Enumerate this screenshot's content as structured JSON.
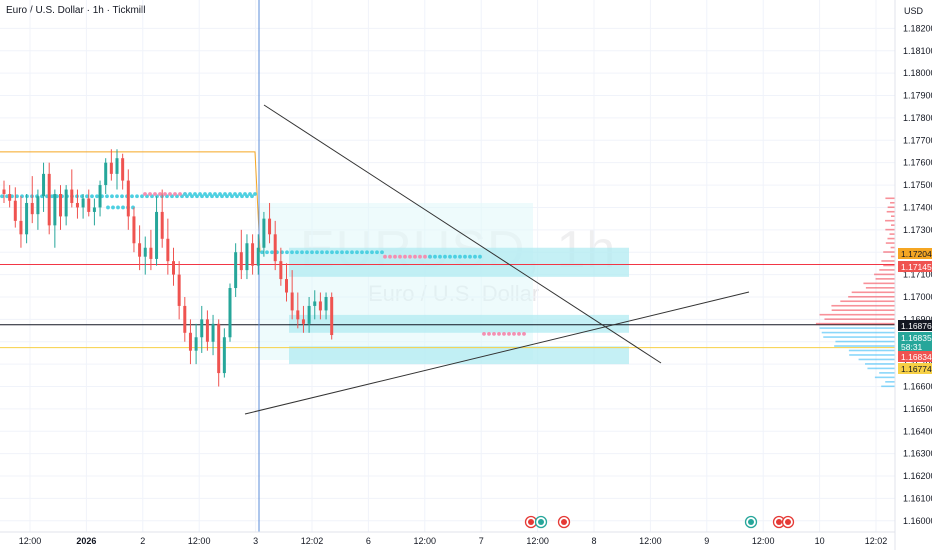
{
  "header": {
    "title": "Euro / U.S. Dollar · 1h · Tickmill",
    "currency": "USD"
  },
  "watermark": {
    "symbol": "EURUSD, 1h",
    "name": "Euro / U.S. Dollar"
  },
  "colors": {
    "up": "#26a69a",
    "down": "#ef5350",
    "resistance_line": "#f23645",
    "support_line": "#f7d046",
    "orange_line": "#f5a623",
    "zone": "#b2ebf2",
    "trend_line": "#333333",
    "cursor_line": "#5b8cd8"
  },
  "chart_data": {
    "type": "candlestick",
    "symbol": "EURUSD",
    "timeframe": "1h",
    "ylim": [
      1.1595,
      1.183
    ],
    "y_ticks": [
      "1.18200",
      "1.18100",
      "1.18000",
      "1.17900",
      "1.17800",
      "1.17700",
      "1.17600",
      "1.17500",
      "1.17400",
      "1.17300",
      "1.17200",
      "1.17100",
      "1.17000",
      "1.16900",
      "1.16800",
      "1.16700",
      "1.16600",
      "1.16500",
      "1.16400",
      "1.16300",
      "1.16200",
      "1.16100",
      "1.16000"
    ],
    "x_ticks": [
      "12:00",
      "2026",
      "2",
      "12:00",
      "3",
      "12:02",
      "6",
      "12:00",
      "7",
      "12:00",
      "8",
      "12:00",
      "9",
      "12:00",
      "10",
      "12:02"
    ],
    "x_tick_pos": [
      0,
      1,
      2,
      3,
      4,
      5,
      6,
      7,
      8,
      9,
      10,
      11,
      12,
      13,
      14,
      15
    ],
    "price_labels": [
      {
        "value": 1.17204,
        "text": "1.17204",
        "role": "orange"
      },
      {
        "value": 1.17145,
        "text": "1.17145",
        "role": "red"
      },
      {
        "value": 1.16876,
        "text": "1.16876",
        "role": "black"
      },
      {
        "value": 1.16835,
        "text": "1.16835",
        "sub": "58:31",
        "role": "teal"
      },
      {
        "value": 1.16834,
        "text": "1.16834",
        "role": "red"
      },
      {
        "value": 1.16774,
        "text": "1.16774",
        "role": "yellow"
      }
    ],
    "horizontal_levels": [
      {
        "value": 1.17145,
        "role": "resistance"
      },
      {
        "value": 1.16876,
        "role": "current"
      },
      {
        "value": 1.16774,
        "role": "support"
      }
    ],
    "candles": [
      {
        "o": 1.1748,
        "h": 1.1752,
        "l": 1.1742,
        "c": 1.1746
      },
      {
        "o": 1.1746,
        "h": 1.175,
        "l": 1.174,
        "c": 1.1743
      },
      {
        "o": 1.1743,
        "h": 1.1749,
        "l": 1.1731,
        "c": 1.1734
      },
      {
        "o": 1.1734,
        "h": 1.1745,
        "l": 1.1722,
        "c": 1.1728
      },
      {
        "o": 1.1728,
        "h": 1.1746,
        "l": 1.1724,
        "c": 1.1742
      },
      {
        "o": 1.1742,
        "h": 1.1754,
        "l": 1.1733,
        "c": 1.1737
      },
      {
        "o": 1.1737,
        "h": 1.1748,
        "l": 1.173,
        "c": 1.1745
      },
      {
        "o": 1.1745,
        "h": 1.176,
        "l": 1.1738,
        "c": 1.1755
      },
      {
        "o": 1.1755,
        "h": 1.176,
        "l": 1.1728,
        "c": 1.1732
      },
      {
        "o": 1.1732,
        "h": 1.1748,
        "l": 1.1722,
        "c": 1.1746
      },
      {
        "o": 1.1746,
        "h": 1.175,
        "l": 1.173,
        "c": 1.1736
      },
      {
        "o": 1.1736,
        "h": 1.175,
        "l": 1.1732,
        "c": 1.1748
      },
      {
        "o": 1.1748,
        "h": 1.1757,
        "l": 1.174,
        "c": 1.1742
      },
      {
        "o": 1.1742,
        "h": 1.1748,
        "l": 1.1735,
        "c": 1.174
      },
      {
        "o": 1.174,
        "h": 1.1746,
        "l": 1.1735,
        "c": 1.1744
      },
      {
        "o": 1.1744,
        "h": 1.1748,
        "l": 1.1736,
        "c": 1.1738
      },
      {
        "o": 1.1738,
        "h": 1.1744,
        "l": 1.1732,
        "c": 1.174
      },
      {
        "o": 1.174,
        "h": 1.1752,
        "l": 1.1736,
        "c": 1.175
      },
      {
        "o": 1.175,
        "h": 1.1762,
        "l": 1.1746,
        "c": 1.176
      },
      {
        "o": 1.176,
        "h": 1.1766,
        "l": 1.1752,
        "c": 1.1755
      },
      {
        "o": 1.1755,
        "h": 1.1766,
        "l": 1.1748,
        "c": 1.1762
      },
      {
        "o": 1.1762,
        "h": 1.1764,
        "l": 1.1748,
        "c": 1.1752
      },
      {
        "o": 1.1752,
        "h": 1.1757,
        "l": 1.173,
        "c": 1.1736
      },
      {
        "o": 1.1736,
        "h": 1.174,
        "l": 1.172,
        "c": 1.1724
      },
      {
        "o": 1.1724,
        "h": 1.1732,
        "l": 1.1712,
        "c": 1.1718
      },
      {
        "o": 1.1718,
        "h": 1.1727,
        "l": 1.171,
        "c": 1.1722
      },
      {
        "o": 1.1722,
        "h": 1.173,
        "l": 1.1712,
        "c": 1.1717
      },
      {
        "o": 1.1717,
        "h": 1.1745,
        "l": 1.1714,
        "c": 1.1738
      },
      {
        "o": 1.1738,
        "h": 1.1748,
        "l": 1.1722,
        "c": 1.1726
      },
      {
        "o": 1.1726,
        "h": 1.1735,
        "l": 1.171,
        "c": 1.1716
      },
      {
        "o": 1.1716,
        "h": 1.1722,
        "l": 1.1705,
        "c": 1.171
      },
      {
        "o": 1.171,
        "h": 1.1716,
        "l": 1.169,
        "c": 1.1696
      },
      {
        "o": 1.1696,
        "h": 1.17,
        "l": 1.168,
        "c": 1.1684
      },
      {
        "o": 1.1684,
        "h": 1.169,
        "l": 1.167,
        "c": 1.1676
      },
      {
        "o": 1.1676,
        "h": 1.1688,
        "l": 1.167,
        "c": 1.1682
      },
      {
        "o": 1.1682,
        "h": 1.1696,
        "l": 1.1675,
        "c": 1.169
      },
      {
        "o": 1.169,
        "h": 1.1694,
        "l": 1.1676,
        "c": 1.168
      },
      {
        "o": 1.168,
        "h": 1.1692,
        "l": 1.1674,
        "c": 1.1688
      },
      {
        "o": 1.1688,
        "h": 1.169,
        "l": 1.166,
        "c": 1.1666
      },
      {
        "o": 1.1666,
        "h": 1.1686,
        "l": 1.1664,
        "c": 1.1682
      },
      {
        "o": 1.1682,
        "h": 1.1706,
        "l": 1.168,
        "c": 1.1704
      },
      {
        "o": 1.1704,
        "h": 1.1724,
        "l": 1.17,
        "c": 1.172
      },
      {
        "o": 1.172,
        "h": 1.173,
        "l": 1.1708,
        "c": 1.1712
      },
      {
        "o": 1.1712,
        "h": 1.1728,
        "l": 1.1708,
        "c": 1.1724
      },
      {
        "o": 1.1724,
        "h": 1.1728,
        "l": 1.171,
        "c": 1.1714
      },
      {
        "o": 1.1714,
        "h": 1.1728,
        "l": 1.171,
        "c": 1.1722
      },
      {
        "o": 1.1722,
        "h": 1.1738,
        "l": 1.1718,
        "c": 1.1735
      },
      {
        "o": 1.1735,
        "h": 1.1742,
        "l": 1.1724,
        "c": 1.1728
      },
      {
        "o": 1.1728,
        "h": 1.1734,
        "l": 1.1712,
        "c": 1.1716
      },
      {
        "o": 1.1716,
        "h": 1.1722,
        "l": 1.1705,
        "c": 1.1708
      },
      {
        "o": 1.1708,
        "h": 1.1715,
        "l": 1.1698,
        "c": 1.1702
      },
      {
        "o": 1.1702,
        "h": 1.1712,
        "l": 1.169,
        "c": 1.1694
      },
      {
        "o": 1.1694,
        "h": 1.1702,
        "l": 1.1686,
        "c": 1.169
      },
      {
        "o": 1.169,
        "h": 1.1696,
        "l": 1.1684,
        "c": 1.1688
      },
      {
        "o": 1.1688,
        "h": 1.17,
        "l": 1.1684,
        "c": 1.1696
      },
      {
        "o": 1.1696,
        "h": 1.1703,
        "l": 1.169,
        "c": 1.1698
      },
      {
        "o": 1.1698,
        "h": 1.1702,
        "l": 1.169,
        "c": 1.1694
      },
      {
        "o": 1.1694,
        "h": 1.1702,
        "l": 1.169,
        "c": 1.17
      },
      {
        "o": 1.17,
        "h": 1.1702,
        "l": 1.1681,
        "c": 1.1683
      }
    ]
  }
}
